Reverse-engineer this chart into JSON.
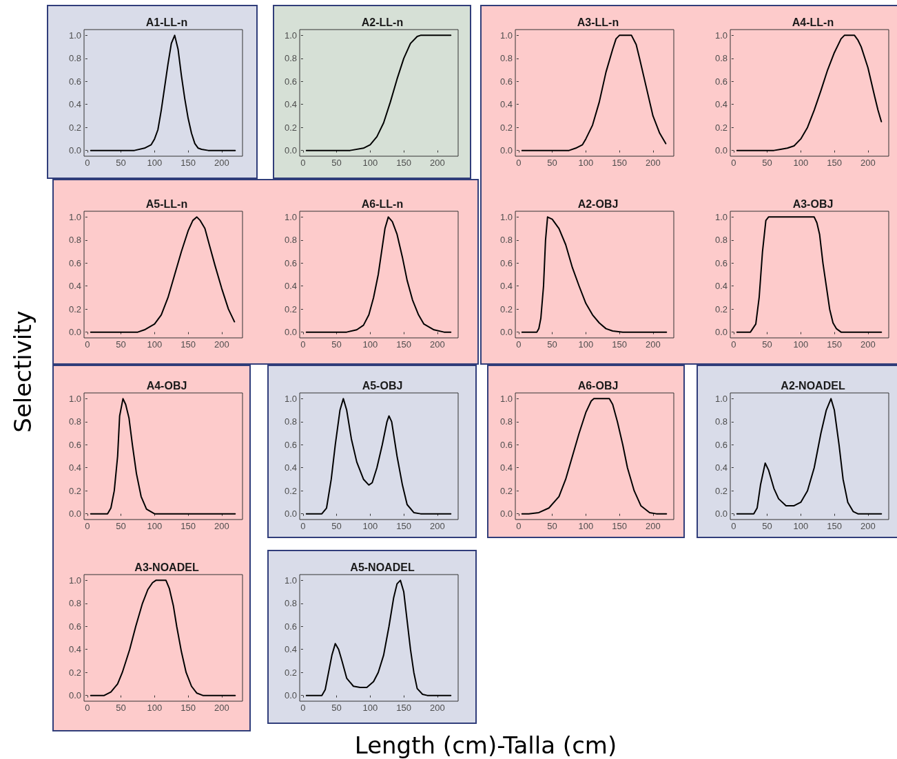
{
  "chart_data": [
    {
      "type": "line",
      "title": "A1-LL-n",
      "xlim": [
        -5,
        231
      ],
      "ylim": [
        -0.05,
        1.05
      ],
      "xticks": [
        0,
        50,
        100,
        150,
        200
      ],
      "yticks": [
        {
          "value": 0,
          "label": "0.0"
        },
        {
          "value": 0.2,
          "label": "0.2"
        },
        {
          "value": 0.4,
          "label": "0.4"
        },
        {
          "value": 0.6,
          "label": "0.6"
        },
        {
          "value": 0.8,
          "label": "0.8"
        },
        {
          "value": 1,
          "label": "1.0"
        }
      ],
      "grid": false,
      "marker": "none",
      "line_style": "solid",
      "series": [
        {
          "color": "#000000",
          "x": [
            5,
            70,
            85,
            95,
            100,
            105,
            110,
            115,
            120,
            125,
            130,
            135,
            140,
            145,
            150,
            155,
            160,
            165,
            170,
            180,
            220
          ],
          "values": [
            0,
            0,
            0.02,
            0.05,
            0.1,
            0.18,
            0.35,
            0.55,
            0.75,
            0.93,
            1,
            0.88,
            0.65,
            0.45,
            0.28,
            0.15,
            0.06,
            0.02,
            0.01,
            0,
            0
          ]
        }
      ]
    },
    {
      "type": "line",
      "title": "A2-LL-n",
      "xlim": [
        -5,
        231
      ],
      "ylim": [
        -0.05,
        1.05
      ],
      "xticks": [
        0,
        50,
        100,
        150,
        200
      ],
      "yticks": [
        {
          "value": 0,
          "label": "0.0"
        },
        {
          "value": 0.2,
          "label": "0.2"
        },
        {
          "value": 0.4,
          "label": "0.4"
        },
        {
          "value": 0.6,
          "label": "0.6"
        },
        {
          "value": 0.8,
          "label": "0.8"
        },
        {
          "value": 1,
          "label": "1.0"
        }
      ],
      "grid": false,
      "marker": "none",
      "line_style": "solid",
      "series": [
        {
          "color": "#000000",
          "x": [
            5,
            70,
            90,
            100,
            110,
            120,
            130,
            140,
            150,
            160,
            170,
            175,
            220
          ],
          "values": [
            0,
            0,
            0.02,
            0.05,
            0.12,
            0.24,
            0.42,
            0.62,
            0.8,
            0.93,
            0.99,
            1,
            1
          ]
        }
      ]
    },
    {
      "type": "line",
      "title": "A3-LL-n",
      "xlim": [
        -5,
        231
      ],
      "ylim": [
        -0.05,
        1.05
      ],
      "xticks": [
        0,
        50,
        100,
        150,
        200
      ],
      "yticks": [
        {
          "value": 0,
          "label": "0.0"
        },
        {
          "value": 0.2,
          "label": "0.2"
        },
        {
          "value": 0.4,
          "label": "0.4"
        },
        {
          "value": 0.6,
          "label": "0.6"
        },
        {
          "value": 0.8,
          "label": "0.8"
        },
        {
          "value": 1,
          "label": "1.0"
        }
      ],
      "grid": false,
      "marker": "none",
      "line_style": "solid",
      "series": [
        {
          "color": "#000000",
          "x": [
            5,
            75,
            85,
            95,
            100,
            110,
            120,
            130,
            140,
            145,
            150,
            168,
            175,
            180,
            190,
            200,
            210,
            219
          ],
          "values": [
            0,
            0,
            0.02,
            0.05,
            0.1,
            0.22,
            0.42,
            0.68,
            0.88,
            0.97,
            1,
            1,
            0.92,
            0.8,
            0.55,
            0.3,
            0.15,
            0.06
          ]
        }
      ]
    },
    {
      "type": "line",
      "title": "A4-LL-n",
      "xlim": [
        -5,
        231
      ],
      "ylim": [
        -0.05,
        1.05
      ],
      "xticks": [
        0,
        50,
        100,
        150,
        200
      ],
      "yticks": [
        {
          "value": 0,
          "label": "0.0"
        },
        {
          "value": 0.2,
          "label": "0.2"
        },
        {
          "value": 0.4,
          "label": "0.4"
        },
        {
          "value": 0.6,
          "label": "0.6"
        },
        {
          "value": 0.8,
          "label": "0.8"
        },
        {
          "value": 1,
          "label": "1.0"
        }
      ],
      "grid": false,
      "marker": "none",
      "line_style": "solid",
      "series": [
        {
          "color": "#000000",
          "x": [
            5,
            60,
            70,
            80,
            90,
            100,
            110,
            120,
            130,
            140,
            150,
            160,
            165,
            180,
            185,
            190,
            200,
            210,
            215,
            220
          ],
          "values": [
            0,
            0,
            0.01,
            0.02,
            0.04,
            0.1,
            0.2,
            0.35,
            0.52,
            0.7,
            0.85,
            0.97,
            1,
            1,
            0.96,
            0.9,
            0.72,
            0.47,
            0.35,
            0.25
          ]
        }
      ]
    },
    {
      "type": "line",
      "title": "A5-LL-n",
      "ylabel": "Selectivity",
      "xlim": [
        -5,
        231
      ],
      "ylim": [
        -0.05,
        1.05
      ],
      "xticks": [
        0,
        50,
        100,
        150,
        200
      ],
      "yticks": [
        {
          "value": 0,
          "label": "0.0"
        },
        {
          "value": 0.2,
          "label": "0.2"
        },
        {
          "value": 0.4,
          "label": "0.4"
        },
        {
          "value": 0.6,
          "label": "0.6"
        },
        {
          "value": 0.8,
          "label": "0.8"
        },
        {
          "value": 1,
          "label": "1.0"
        }
      ],
      "grid": false,
      "marker": "none",
      "line_style": "solid",
      "series": [
        {
          "color": "#000000",
          "x": [
            5,
            75,
            85,
            100,
            110,
            120,
            130,
            140,
            150,
            157,
            163,
            168,
            175,
            182,
            190,
            200,
            210,
            219
          ],
          "values": [
            0,
            0,
            0.02,
            0.07,
            0.15,
            0.3,
            0.5,
            0.7,
            0.88,
            0.97,
            1,
            0.97,
            0.9,
            0.75,
            0.58,
            0.38,
            0.2,
            0.09
          ]
        }
      ]
    },
    {
      "type": "line",
      "title": "A6-LL-n",
      "xlim": [
        -5,
        231
      ],
      "ylim": [
        -0.05,
        1.05
      ],
      "xticks": [
        0,
        50,
        100,
        150,
        200
      ],
      "yticks": [
        {
          "value": 0,
          "label": "0.0"
        },
        {
          "value": 0.2,
          "label": "0.2"
        },
        {
          "value": 0.4,
          "label": "0.4"
        },
        {
          "value": 0.6,
          "label": "0.6"
        },
        {
          "value": 0.8,
          "label": "0.8"
        },
        {
          "value": 1,
          "label": "1.0"
        }
      ],
      "grid": false,
      "marker": "none",
      "line_style": "solid",
      "series": [
        {
          "color": "#000000",
          "x": [
            5,
            65,
            80,
            90,
            98,
            105,
            112,
            117,
            122,
            127,
            133,
            140,
            148,
            155,
            163,
            172,
            180,
            195,
            210,
            220
          ],
          "values": [
            0,
            0,
            0.02,
            0.06,
            0.15,
            0.3,
            0.5,
            0.7,
            0.9,
            1,
            0.96,
            0.85,
            0.65,
            0.45,
            0.28,
            0.15,
            0.07,
            0.02,
            0,
            0
          ]
        }
      ]
    },
    {
      "type": "line",
      "title": "A2-OBJ",
      "xlim": [
        -5,
        231
      ],
      "ylim": [
        -0.05,
        1.05
      ],
      "xticks": [
        0,
        50,
        100,
        150,
        200
      ],
      "yticks": [
        {
          "value": 0,
          "label": "0.0"
        },
        {
          "value": 0.2,
          "label": "0.2"
        },
        {
          "value": 0.4,
          "label": "0.4"
        },
        {
          "value": 0.6,
          "label": "0.6"
        },
        {
          "value": 0.8,
          "label": "0.8"
        },
        {
          "value": 1,
          "label": "1.0"
        }
      ],
      "grid": false,
      "marker": "none",
      "line_style": "solid",
      "series": [
        {
          "color": "#000000",
          "x": [
            5,
            27,
            30,
            33,
            37,
            40,
            43,
            50,
            60,
            70,
            80,
            90,
            100,
            110,
            120,
            130,
            140,
            155,
            220
          ],
          "values": [
            0,
            0,
            0.03,
            0.12,
            0.4,
            0.8,
            1,
            0.98,
            0.9,
            0.76,
            0.56,
            0.4,
            0.25,
            0.15,
            0.08,
            0.03,
            0.01,
            0,
            0
          ]
        }
      ]
    },
    {
      "type": "line",
      "title": "A3-OBJ",
      "xlim": [
        -5,
        231
      ],
      "ylim": [
        -0.05,
        1.05
      ],
      "xticks": [
        0,
        50,
        100,
        150,
        200
      ],
      "yticks": [
        {
          "value": 0,
          "label": "0.0"
        },
        {
          "value": 0.2,
          "label": "0.2"
        },
        {
          "value": 0.4,
          "label": "0.4"
        },
        {
          "value": 0.6,
          "label": "0.6"
        },
        {
          "value": 0.8,
          "label": "0.8"
        },
        {
          "value": 1,
          "label": "1.0"
        }
      ],
      "grid": false,
      "marker": "none",
      "line_style": "solid",
      "series": [
        {
          "color": "#000000",
          "x": [
            5,
            25,
            33,
            38,
            43,
            48,
            52,
            120,
            124,
            128,
            133,
            138,
            143,
            148,
            153,
            160,
            220
          ],
          "values": [
            0,
            0,
            0.07,
            0.3,
            0.7,
            0.97,
            1,
            1,
            0.95,
            0.85,
            0.6,
            0.4,
            0.2,
            0.08,
            0.03,
            0,
            0
          ]
        }
      ]
    },
    {
      "type": "line",
      "title": "A4-OBJ",
      "xlim": [
        -5,
        231
      ],
      "ylim": [
        -0.05,
        1.05
      ],
      "xticks": [
        0,
        50,
        100,
        150,
        200
      ],
      "yticks": [
        {
          "value": 0,
          "label": "0.0"
        },
        {
          "value": 0.2,
          "label": "0.2"
        },
        {
          "value": 0.4,
          "label": "0.4"
        },
        {
          "value": 0.6,
          "label": "0.6"
        },
        {
          "value": 0.8,
          "label": "0.8"
        },
        {
          "value": 1,
          "label": "1.0"
        }
      ],
      "grid": false,
      "marker": "none",
      "line_style": "solid",
      "series": [
        {
          "color": "#000000",
          "x": [
            5,
            30,
            35,
            40,
            45,
            48,
            53,
            57,
            62,
            67,
            73,
            80,
            88,
            100,
            220
          ],
          "values": [
            0,
            0,
            0.05,
            0.2,
            0.5,
            0.85,
            1,
            0.95,
            0.83,
            0.6,
            0.35,
            0.15,
            0.04,
            0,
            0
          ]
        }
      ]
    },
    {
      "type": "line",
      "title": "A5-OBJ",
      "xlim": [
        -5,
        231
      ],
      "ylim": [
        -0.05,
        1.05
      ],
      "xticks": [
        0,
        50,
        100,
        150,
        200
      ],
      "yticks": [
        {
          "value": 0,
          "label": "0.0"
        },
        {
          "value": 0.2,
          "label": "0.2"
        },
        {
          "value": 0.4,
          "label": "0.4"
        },
        {
          "value": 0.6,
          "label": "0.6"
        },
        {
          "value": 0.8,
          "label": "0.8"
        },
        {
          "value": 1,
          "label": "1.0"
        }
      ],
      "grid": false,
      "marker": "none",
      "line_style": "solid",
      "series": [
        {
          "color": "#000000",
          "x": [
            5,
            28,
            35,
            42,
            48,
            55,
            60,
            65,
            72,
            80,
            90,
            98,
            103,
            110,
            118,
            125,
            128,
            132,
            140,
            148,
            155,
            165,
            175,
            220
          ],
          "values": [
            0,
            0,
            0.05,
            0.3,
            0.6,
            0.9,
            1,
            0.9,
            0.65,
            0.45,
            0.3,
            0.25,
            0.27,
            0.4,
            0.6,
            0.8,
            0.85,
            0.8,
            0.5,
            0.25,
            0.08,
            0.01,
            0,
            0
          ]
        }
      ]
    },
    {
      "type": "line",
      "title": "A6-OBJ",
      "xlim": [
        -5,
        231
      ],
      "ylim": [
        -0.05,
        1.05
      ],
      "xticks": [
        0,
        50,
        100,
        150,
        200
      ],
      "yticks": [
        {
          "value": 0,
          "label": "0.0"
        },
        {
          "value": 0.2,
          "label": "0.2"
        },
        {
          "value": 0.4,
          "label": "0.4"
        },
        {
          "value": 0.6,
          "label": "0.6"
        },
        {
          "value": 0.8,
          "label": "0.8"
        },
        {
          "value": 1,
          "label": "1.0"
        }
      ],
      "grid": false,
      "marker": "none",
      "line_style": "solid",
      "series": [
        {
          "color": "#000000",
          "x": [
            5,
            15,
            30,
            45,
            60,
            70,
            80,
            90,
            100,
            108,
            112,
            135,
            140,
            147,
            155,
            162,
            172,
            182,
            195,
            205,
            220
          ],
          "values": [
            0,
            0,
            0.01,
            0.05,
            0.15,
            0.3,
            0.5,
            0.7,
            0.88,
            0.98,
            1,
            1,
            0.95,
            0.8,
            0.6,
            0.4,
            0.2,
            0.07,
            0.01,
            0,
            0
          ]
        }
      ]
    },
    {
      "type": "line",
      "title": "A2-NOADEL",
      "xlim": [
        -5,
        231
      ],
      "ylim": [
        -0.05,
        1.05
      ],
      "xticks": [
        0,
        50,
        100,
        150,
        200
      ],
      "yticks": [
        {
          "value": 0,
          "label": "0.0"
        },
        {
          "value": 0.2,
          "label": "0.2"
        },
        {
          "value": 0.4,
          "label": "0.4"
        },
        {
          "value": 0.6,
          "label": "0.6"
        },
        {
          "value": 0.8,
          "label": "0.8"
        },
        {
          "value": 1,
          "label": "1.0"
        }
      ],
      "grid": false,
      "marker": "none",
      "line_style": "solid",
      "series": [
        {
          "color": "#000000",
          "x": [
            5,
            30,
            35,
            40,
            47,
            52,
            60,
            67,
            78,
            90,
            100,
            110,
            120,
            130,
            138,
            145,
            150,
            157,
            163,
            170,
            178,
            185,
            220
          ],
          "values": [
            0,
            0,
            0.05,
            0.25,
            0.44,
            0.38,
            0.22,
            0.13,
            0.07,
            0.07,
            0.1,
            0.2,
            0.4,
            0.7,
            0.9,
            1,
            0.9,
            0.6,
            0.3,
            0.1,
            0.02,
            0,
            0
          ]
        }
      ]
    },
    {
      "type": "line",
      "title": "A3-NOADEL",
      "xlim": [
        -5,
        231
      ],
      "ylim": [
        -0.05,
        1.05
      ],
      "xticks": [
        0,
        50,
        100,
        150,
        200
      ],
      "yticks": [
        {
          "value": 0,
          "label": "0.0"
        },
        {
          "value": 0.2,
          "label": "0.2"
        },
        {
          "value": 0.4,
          "label": "0.4"
        },
        {
          "value": 0.6,
          "label": "0.6"
        },
        {
          "value": 0.8,
          "label": "0.8"
        },
        {
          "value": 1,
          "label": "1.0"
        }
      ],
      "grid": false,
      "marker": "none",
      "line_style": "solid",
      "series": [
        {
          "color": "#000000",
          "x": [
            5,
            25,
            35,
            45,
            52,
            63,
            72,
            82,
            90,
            97,
            102,
            117,
            122,
            128,
            133,
            140,
            147,
            155,
            163,
            172,
            220
          ],
          "values": [
            0,
            0,
            0.03,
            0.1,
            0.2,
            0.4,
            0.6,
            0.8,
            0.92,
            0.98,
            1,
            1,
            0.93,
            0.78,
            0.6,
            0.38,
            0.2,
            0.08,
            0.02,
            0,
            0
          ]
        }
      ]
    },
    {
      "type": "line",
      "title": "A5-NOADEL",
      "xlabel": "Length (cm)-Talla (cm)",
      "xlim": [
        -5,
        231
      ],
      "ylim": [
        -0.05,
        1.05
      ],
      "xticks": [
        0,
        50,
        100,
        150,
        200
      ],
      "yticks": [
        {
          "value": 0,
          "label": "0.0"
        },
        {
          "value": 0.2,
          "label": "0.2"
        },
        {
          "value": 0.4,
          "label": "0.4"
        },
        {
          "value": 0.6,
          "label": "0.6"
        },
        {
          "value": 0.8,
          "label": "0.8"
        },
        {
          "value": 1,
          "label": "1.0"
        }
      ],
      "grid": false,
      "marker": "none",
      "line_style": "solid",
      "series": [
        {
          "color": "#000000",
          "x": [
            5,
            28,
            33,
            38,
            43,
            48,
            53,
            58,
            65,
            75,
            85,
            95,
            105,
            112,
            120,
            128,
            135,
            140,
            145,
            150,
            155,
            160,
            165,
            170,
            178,
            185,
            220
          ],
          "values": [
            0,
            0,
            0.05,
            0.2,
            0.35,
            0.45,
            0.4,
            0.3,
            0.15,
            0.08,
            0.07,
            0.07,
            0.12,
            0.2,
            0.35,
            0.6,
            0.85,
            0.97,
            1,
            0.9,
            0.65,
            0.4,
            0.2,
            0.06,
            0.01,
            0,
            0
          ]
        }
      ]
    }
  ]
}
